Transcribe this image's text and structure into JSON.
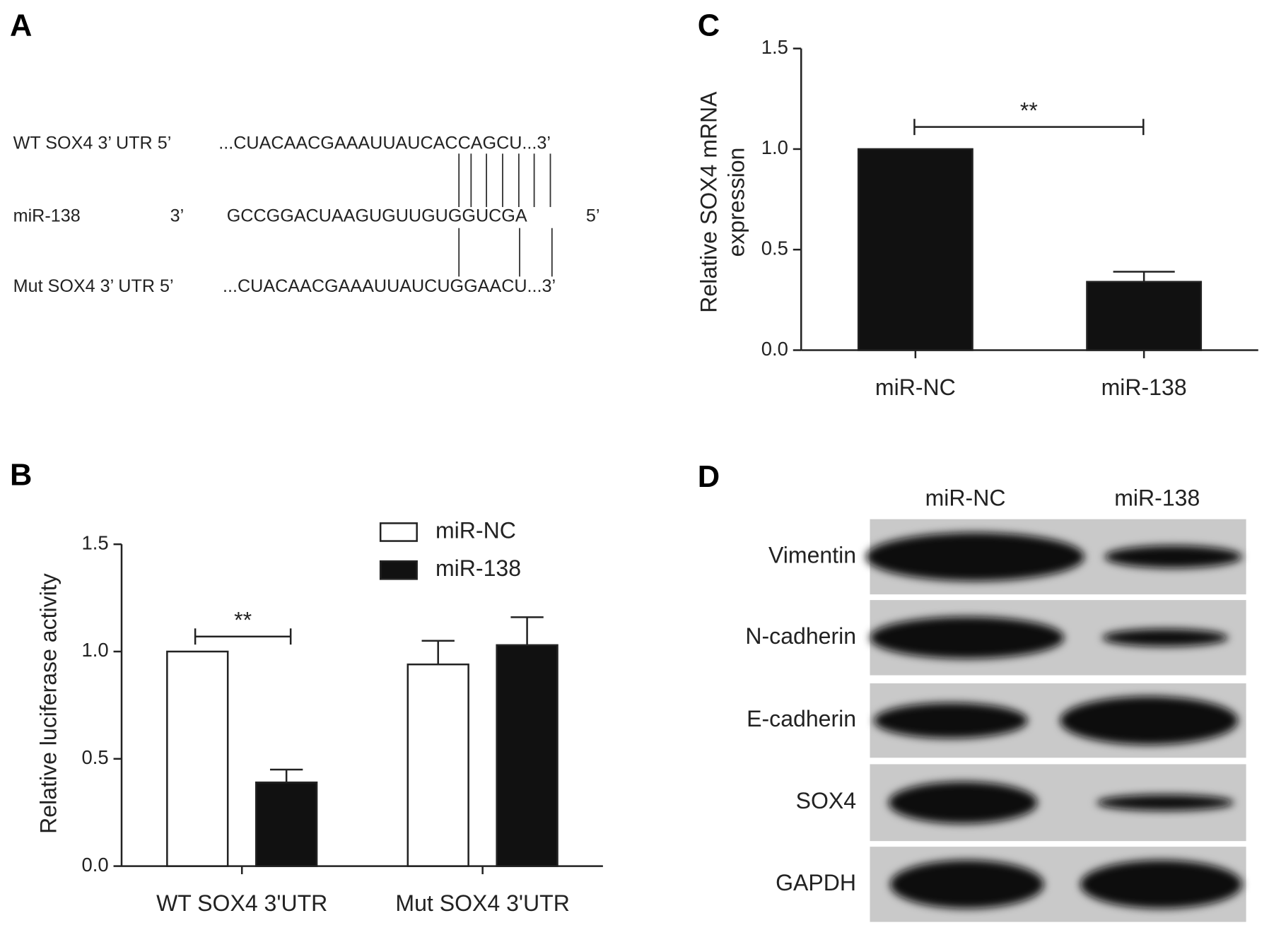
{
  "panel_labels": [
    "A",
    "B",
    "C",
    "D"
  ],
  "sequence_alignment": {
    "rows": [
      {
        "label": "WT SOX4 3’ UTR 5’",
        "sequence": "...CUACAACGAAAUUAUCACCAGCU...3’"
      },
      {
        "label": "miR-138",
        "end": "3’",
        "sequence": "GCCGGACUAAGUGUUGUGGUCGA",
        "end2": "5’"
      },
      {
        "label": "Mut SOX4 3’ UTR 5’",
        "sequence": "...CUACAACGAAAUUAUCUGGAACU...3’"
      }
    ]
  },
  "chart_data": [
    {
      "type": "bar",
      "ylabel": "Relative luciferase activity",
      "categories": [
        "WT SOX4 3'UTR",
        "Mut SOX4 3'UTR"
      ],
      "series": [
        {
          "name": "miR-NC",
          "color": "#ffffff",
          "values": [
            1.0,
            0.94
          ],
          "errors": [
            null,
            0.11
          ]
        },
        {
          "name": "miR-138",
          "color": "#111111",
          "values": [
            0.39,
            1.03
          ],
          "errors": [
            0.06,
            0.13
          ]
        }
      ],
      "ylim": [
        0,
        1.5
      ],
      "yticks": [
        {
          "value": 0,
          "label": "0.0"
        },
        0.5,
        {
          "value": 1,
          "label": "1.0"
        },
        1.5
      ],
      "legend": "top-right",
      "annotations": [
        {
          "text": "**"
        }
      ]
    },
    {
      "type": "bar",
      "ylabel_lines": [
        "Relative SOX4 mRNA",
        "expression"
      ],
      "categories": [
        "miR-NC",
        "miR-138"
      ],
      "values": [
        1.0,
        0.34
      ],
      "errors": [
        null,
        0.05
      ],
      "color": "#111111",
      "ylim": [
        0,
        1.5
      ],
      "yticks": [
        {
          "value": 0,
          "label": "0.0"
        },
        0.5,
        {
          "value": 1,
          "label": "1.0"
        },
        1.5
      ],
      "annotations": [
        {
          "text": "**"
        }
      ]
    }
  ],
  "blot": {
    "columns": [
      "miR-NC",
      "miR-138"
    ],
    "rows": [
      "Vimentin",
      "N-cadherin",
      "E-cadherin",
      "SOX4",
      "GAPDH"
    ]
  }
}
